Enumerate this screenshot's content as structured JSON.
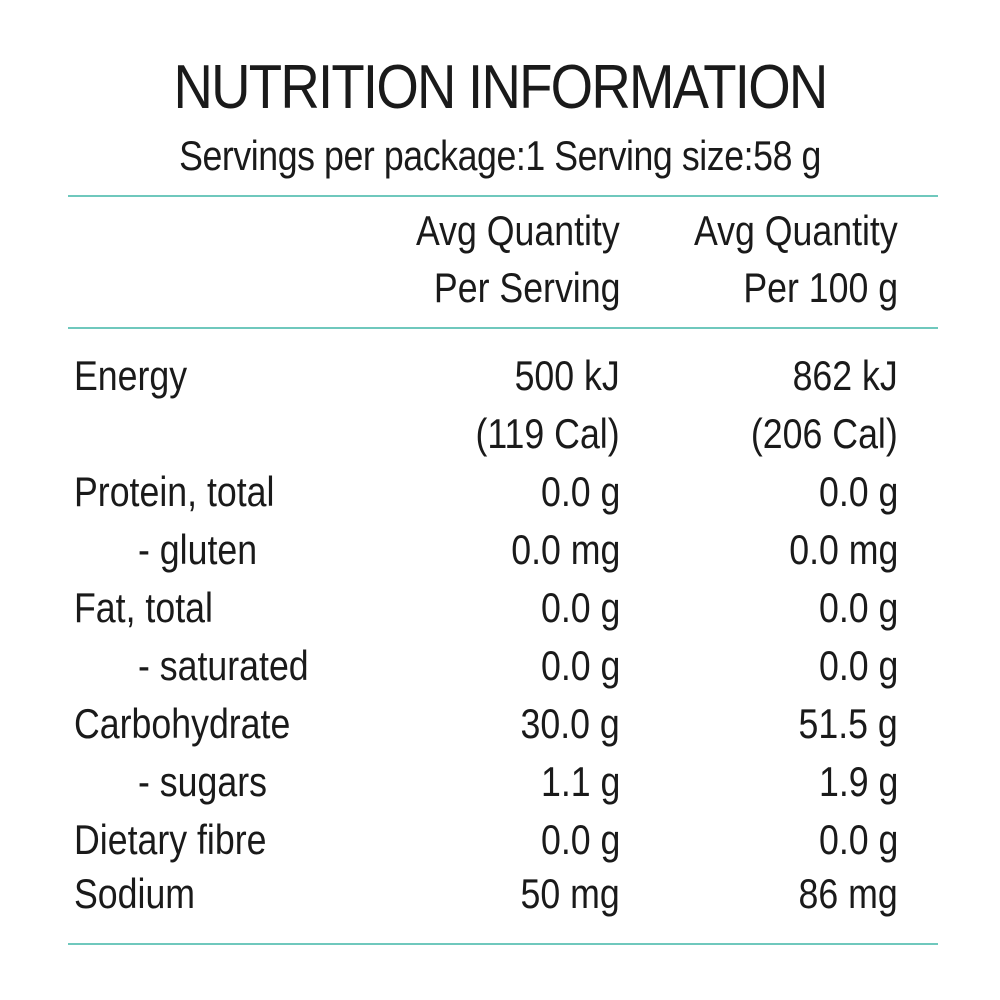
{
  "title": "NUTRITION INFORMATION",
  "subtitle": "Servings per package:1 Serving size:58 g",
  "accent_color": "#6fc8bd",
  "header": {
    "col1_line1": "Avg Quantity",
    "col1_line2": "Per Serving",
    "col2_line1": "Avg Quantity",
    "col2_line2": "Per 100 g"
  },
  "rows": [
    {
      "label": "Energy",
      "per_serving": "500 kJ",
      "per_100g": "862 kJ"
    },
    {
      "label": "",
      "per_serving": "(119 Cal)",
      "per_100g": "(206 Cal)"
    },
    {
      "label": "Protein, total",
      "per_serving": "0.0 g",
      "per_100g": "0.0 g"
    },
    {
      "label": "- gluten",
      "per_serving": "0.0 mg",
      "per_100g": "0.0 mg"
    },
    {
      "label": "Fat, total",
      "per_serving": "0.0 g",
      "per_100g": "0.0 g"
    },
    {
      "label": "- saturated",
      "per_serving": "0.0 g",
      "per_100g": "0.0 g"
    },
    {
      "label": "Carbohydrate",
      "per_serving": "30.0 g",
      "per_100g": "51.5 g"
    },
    {
      "label": "- sugars",
      "per_serving": "1.1 g",
      "per_100g": "1.9 g"
    },
    {
      "label": "Dietary fibre",
      "per_serving": "0.0 g",
      "per_100g": "0.0 g"
    },
    {
      "label": "Sodium",
      "per_serving": "50 mg",
      "per_100g": "86 mg"
    }
  ]
}
